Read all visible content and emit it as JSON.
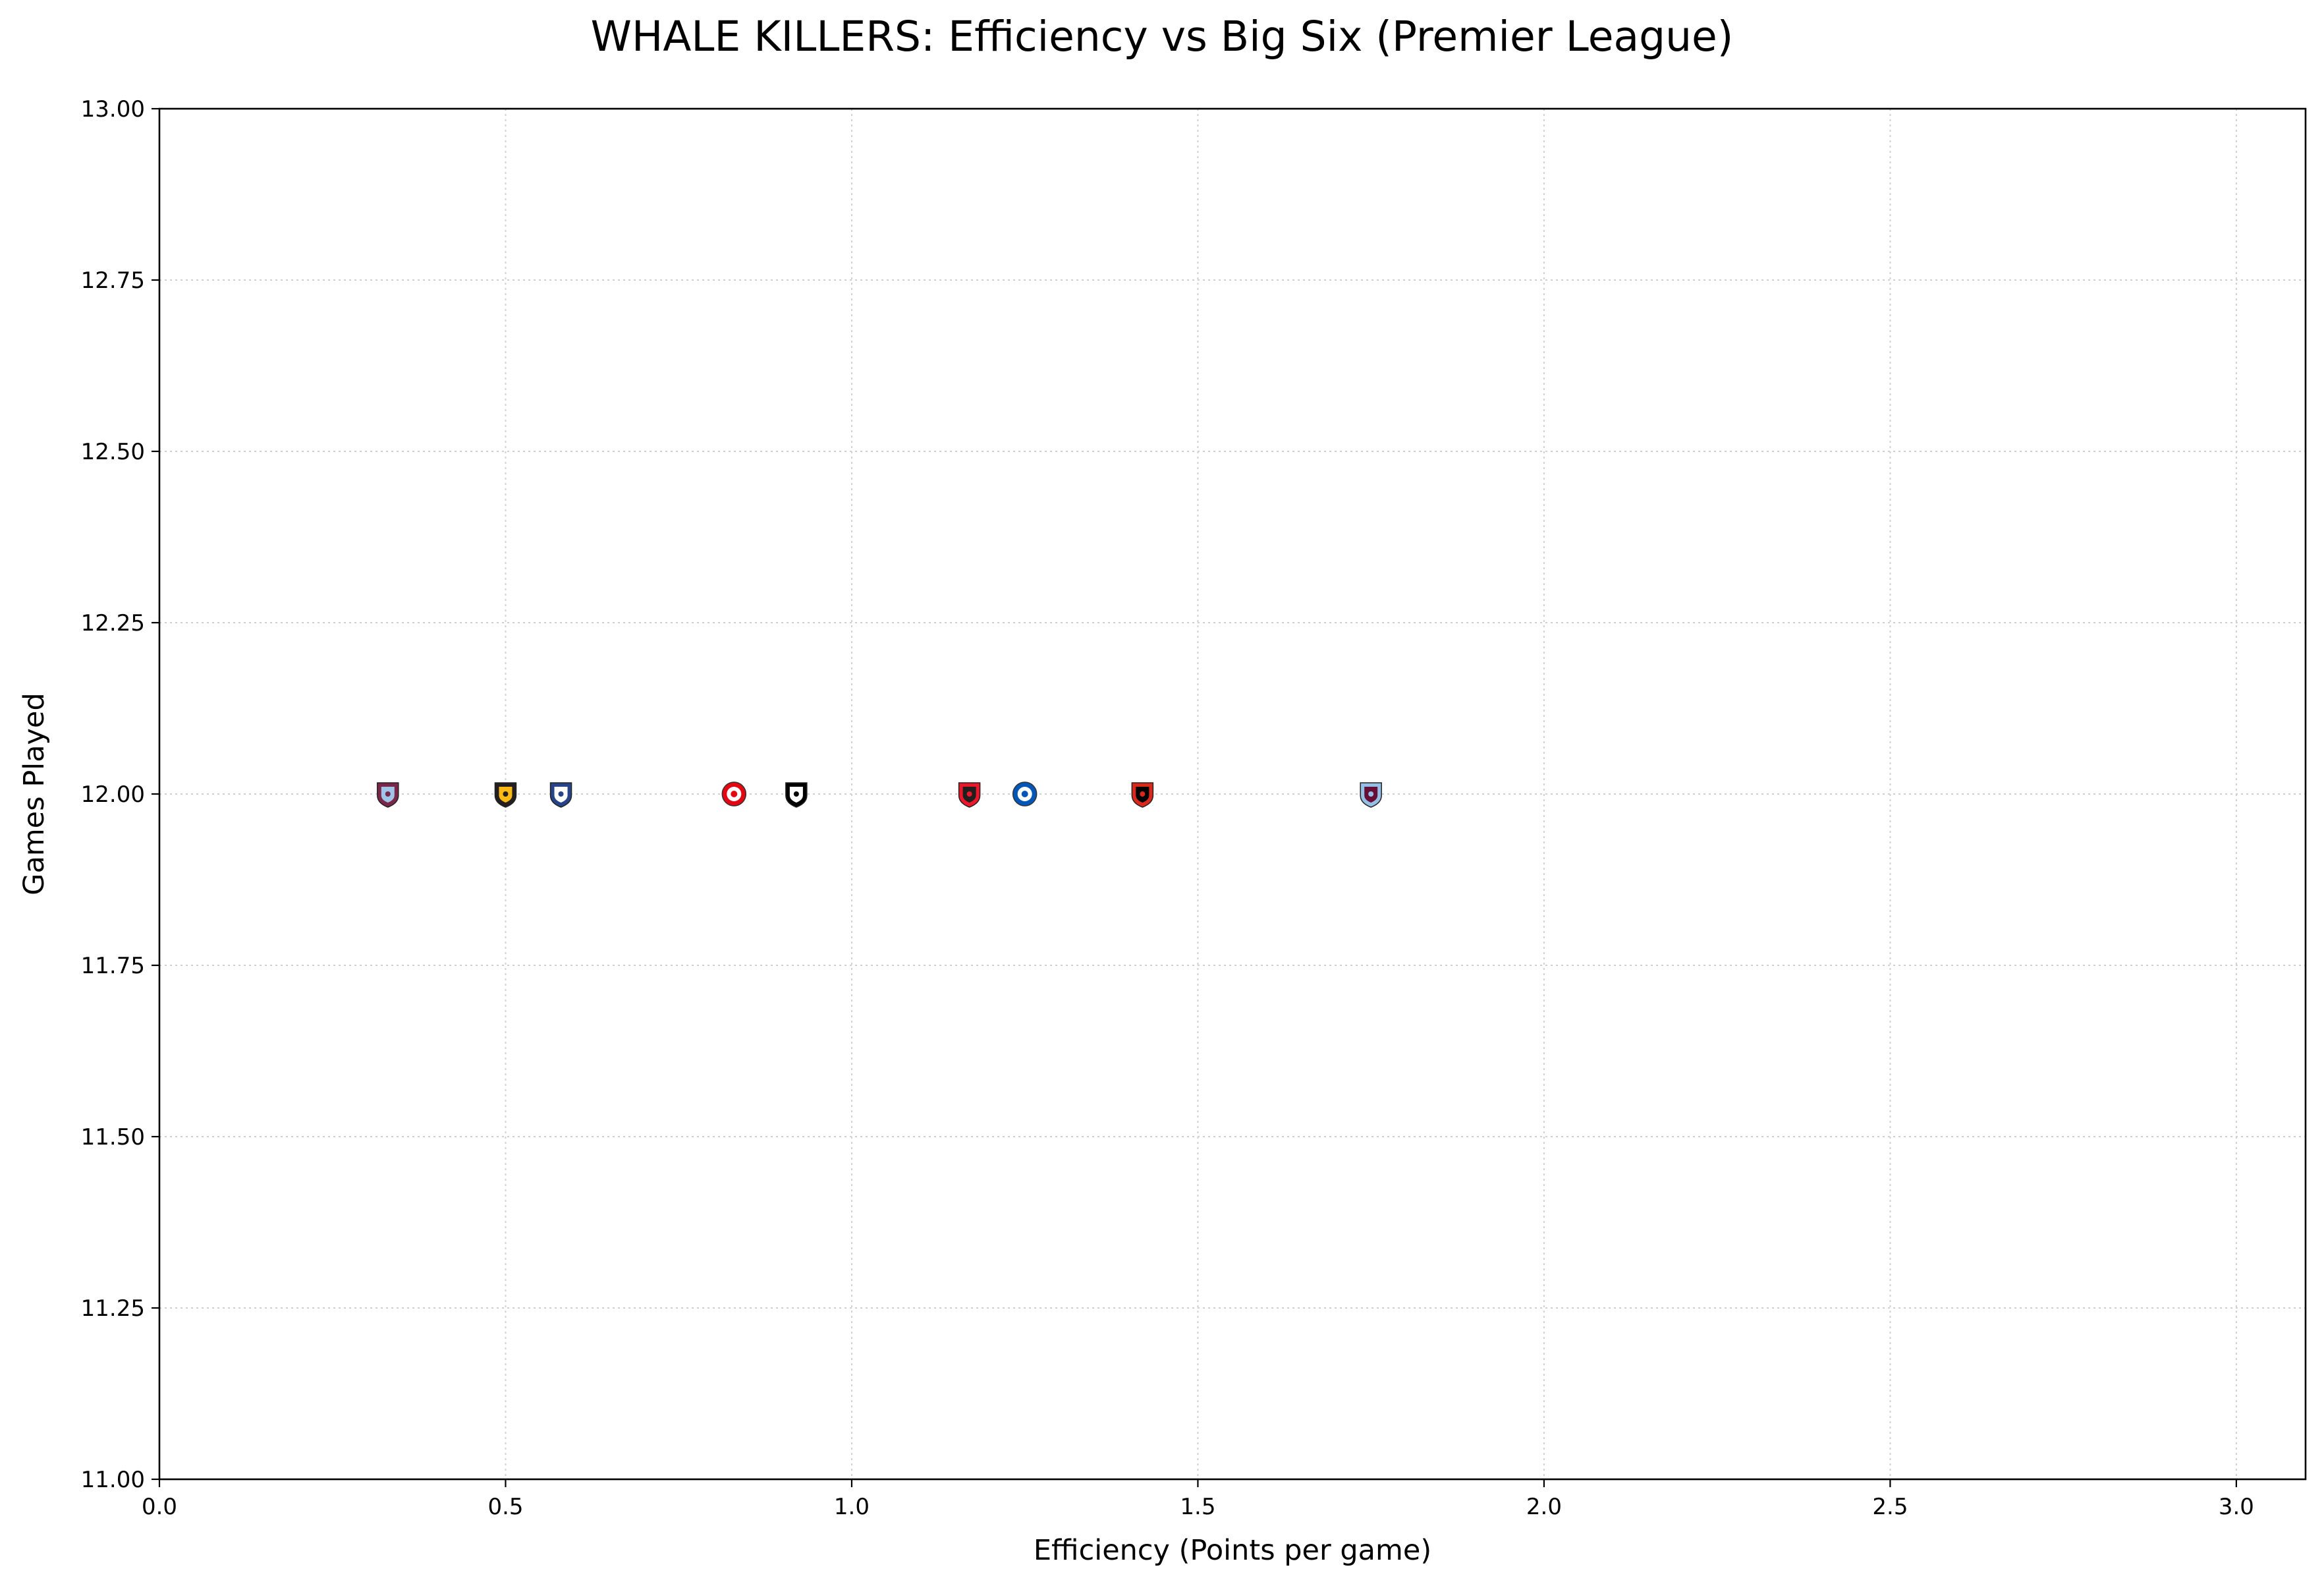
{
  "chart_data": {
    "type": "scatter",
    "title": "WHALE KILLERS: Efficiency vs Big Six (Premier League)",
    "xlabel": "Efficiency (Points per game)",
    "ylabel": "Games Played",
    "xlim": [
      0.0,
      3.1
    ],
    "ylim": [
      11.0,
      13.0
    ],
    "x_ticks": [
      0.0,
      0.5,
      1.0,
      1.5,
      2.0,
      2.5,
      3.0
    ],
    "x_tick_labels": [
      "0.0",
      "0.5",
      "1.0",
      "1.5",
      "2.0",
      "2.5",
      "3.0"
    ],
    "y_ticks": [
      11.0,
      11.25,
      11.5,
      11.75,
      12.0,
      12.25,
      12.5,
      12.75,
      13.0
    ],
    "y_tick_labels": [
      "11.00",
      "11.25",
      "11.50",
      "11.75",
      "12.00",
      "12.25",
      "12.50",
      "12.75",
      "13.00"
    ],
    "grid": true,
    "legend": "none",
    "points": [
      {
        "x": 0.33,
        "y": 12,
        "icon": "claret-crest-icon",
        "colors": [
          "#7a2648",
          "#9ec5e8"
        ]
      },
      {
        "x": 0.5,
        "y": 12,
        "icon": "wolf-crest-icon",
        "colors": [
          "#231f20",
          "#fdb913"
        ]
      },
      {
        "x": 0.58,
        "y": 12,
        "icon": "toffee-crest-icon",
        "colors": [
          "#274488",
          "#ffffff"
        ]
      },
      {
        "x": 0.83,
        "y": 12,
        "icon": "bee-roundel-icon",
        "colors": [
          "#e30613",
          "#ffffff"
        ]
      },
      {
        "x": 0.92,
        "y": 12,
        "icon": "black-white-crest-icon",
        "colors": [
          "#000000",
          "#ffffff"
        ]
      },
      {
        "x": 1.17,
        "y": 12,
        "icon": "red-white-crest-icon",
        "colors": [
          "#eb172b",
          "#211e1e"
        ]
      },
      {
        "x": 1.25,
        "y": 12,
        "icon": "seagull-roundel-icon",
        "colors": [
          "#0057b8",
          "#ffffff"
        ]
      },
      {
        "x": 1.42,
        "y": 12,
        "icon": "cherry-crest-icon",
        "colors": [
          "#da291c",
          "#000000"
        ]
      },
      {
        "x": 1.75,
        "y": 12,
        "icon": "claret-blue-crest-icon",
        "colors": [
          "#95bfe5",
          "#670e36"
        ]
      }
    ]
  }
}
